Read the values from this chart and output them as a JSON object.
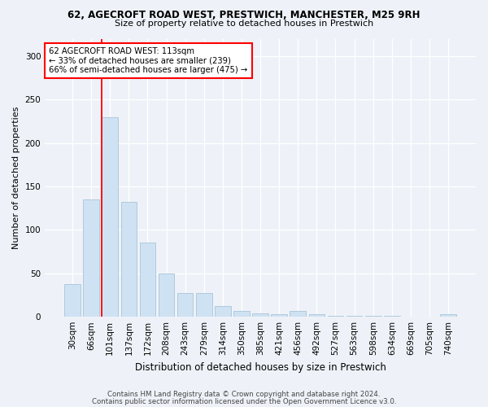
{
  "title1": "62, AGECROFT ROAD WEST, PRESTWICH, MANCHESTER, M25 9RH",
  "title2": "Size of property relative to detached houses in Prestwich",
  "xlabel": "Distribution of detached houses by size in Prestwich",
  "ylabel": "Number of detached properties",
  "categories": [
    "30sqm",
    "66sqm",
    "101sqm",
    "137sqm",
    "172sqm",
    "208sqm",
    "243sqm",
    "279sqm",
    "314sqm",
    "350sqm",
    "385sqm",
    "421sqm",
    "456sqm",
    "492sqm",
    "527sqm",
    "563sqm",
    "598sqm",
    "634sqm",
    "669sqm",
    "705sqm",
    "740sqm"
  ],
  "values": [
    38,
    135,
    230,
    132,
    85,
    50,
    27,
    27,
    12,
    7,
    4,
    3,
    7,
    3,
    1,
    1,
    1,
    1,
    0,
    0,
    3
  ],
  "bar_color": "#cfe2f3",
  "bar_edge_color": "#a8c4d8",
  "vline_color": "red",
  "vline_x": 1.575,
  "annotation_line1": "62 AGECROFT ROAD WEST: 113sqm",
  "annotation_line2": "← 33% of detached houses are smaller (239)",
  "annotation_line3": "66% of semi-detached houses are larger (475) →",
  "annotation_box_color": "white",
  "annotation_box_edge": "red",
  "footer1": "Contains HM Land Registry data © Crown copyright and database right 2024.",
  "footer2": "Contains public sector information licensed under the Open Government Licence v3.0.",
  "ylim": [
    0,
    320
  ],
  "yticks": [
    0,
    50,
    100,
    150,
    200,
    250,
    300
  ],
  "background_color": "#eef2f8",
  "title1_fontsize": 8.5,
  "title2_fontsize": 8.0,
  "ylabel_fontsize": 8.0,
  "xlabel_fontsize": 8.5,
  "tick_fontsize": 7.5,
  "footer_fontsize": 6.2
}
